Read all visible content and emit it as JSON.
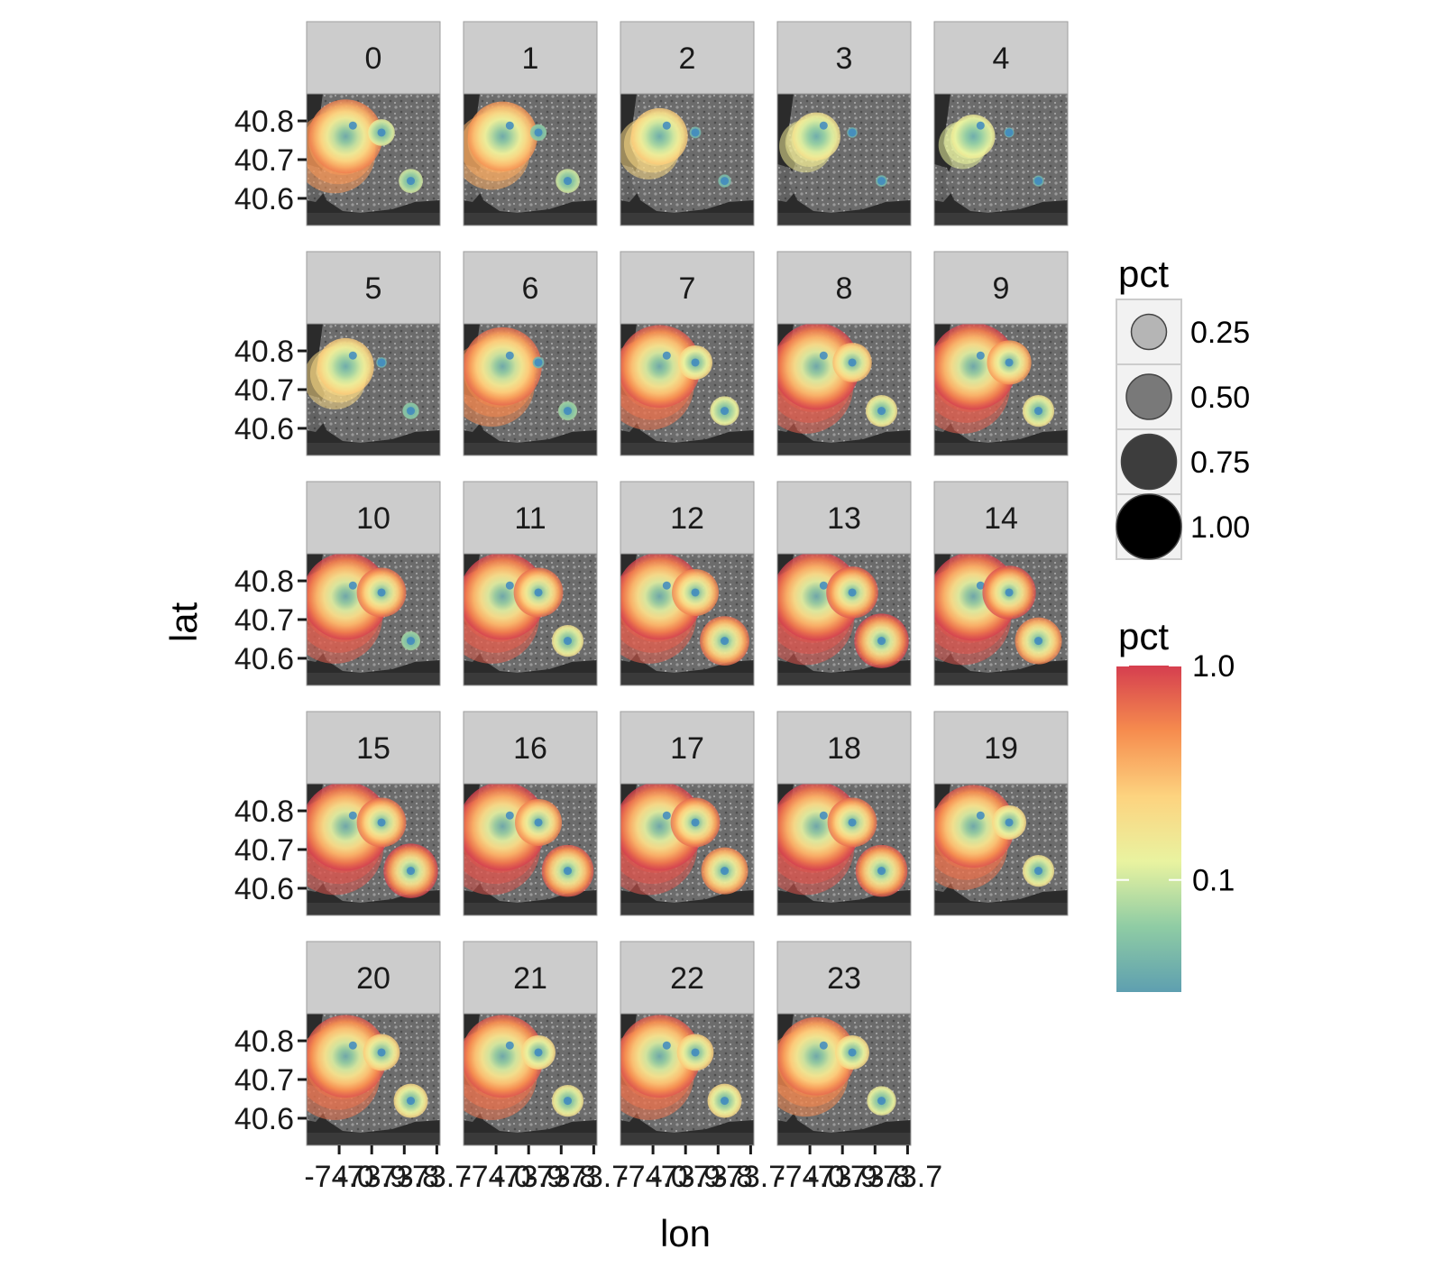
{
  "chart_data": {
    "type": "scatter",
    "xlabel": "lon",
    "ylabel": "lat",
    "x_tick_labels": [
      "-74.0",
      "-73.9",
      "-73.8",
      "-73.7"
    ],
    "x_tick_values": [
      -74.0,
      -73.9,
      -73.8,
      -73.7
    ],
    "y_tick_labels": [
      "40.6",
      "40.7",
      "40.8"
    ],
    "y_tick_values": [
      40.6,
      40.7,
      40.8
    ],
    "xlim": [
      -74.1,
      -73.69
    ],
    "ylim": [
      40.53,
      40.87
    ],
    "facet_by": "hour",
    "facet_cols": 5,
    "facets": [
      {
        "label": "0",
        "intensity": [
          0.75,
          0.35,
          0.3
        ]
      },
      {
        "label": "1",
        "intensity": [
          0.7,
          0.15,
          0.3
        ]
      },
      {
        "label": "2",
        "intensity": [
          0.55,
          0.05,
          0.08
        ]
      },
      {
        "label": "3",
        "intensity": [
          0.45,
          0.03,
          0.05
        ]
      },
      {
        "label": "4",
        "intensity": [
          0.4,
          0.02,
          0.04
        ]
      },
      {
        "label": "5",
        "intensity": [
          0.55,
          0.03,
          0.15
        ]
      },
      {
        "label": "6",
        "intensity": [
          0.8,
          0.05,
          0.2
        ]
      },
      {
        "label": "7",
        "intensity": [
          0.85,
          0.5,
          0.4
        ]
      },
      {
        "label": "8",
        "intensity": [
          0.9,
          0.6,
          0.45
        ]
      },
      {
        "label": "9",
        "intensity": [
          0.9,
          0.7,
          0.45
        ]
      },
      {
        "label": "10",
        "intensity": [
          0.9,
          0.8,
          0.2
        ]
      },
      {
        "label": "11",
        "intensity": [
          0.9,
          0.8,
          0.45
        ]
      },
      {
        "label": "12",
        "intensity": [
          0.9,
          0.75,
          0.8
        ]
      },
      {
        "label": "13",
        "intensity": [
          0.92,
          0.85,
          0.9
        ]
      },
      {
        "label": "14",
        "intensity": [
          0.92,
          0.88,
          0.75
        ]
      },
      {
        "label": "15",
        "intensity": [
          0.92,
          0.8,
          0.9
        ]
      },
      {
        "label": "16",
        "intensity": [
          0.92,
          0.75,
          0.85
        ]
      },
      {
        "label": "17",
        "intensity": [
          0.92,
          0.8,
          0.75
        ]
      },
      {
        "label": "18",
        "intensity": [
          0.92,
          0.8,
          0.85
        ]
      },
      {
        "label": "19",
        "intensity": [
          0.85,
          0.5,
          0.45
        ]
      },
      {
        "label": "20",
        "intensity": [
          0.85,
          0.55,
          0.5
        ]
      },
      {
        "label": "21",
        "intensity": [
          0.85,
          0.5,
          0.45
        ]
      },
      {
        "label": "22",
        "intensity": [
          0.85,
          0.55,
          0.5
        ]
      },
      {
        "label": "23",
        "intensity": [
          0.8,
          0.5,
          0.4
        ]
      }
    ],
    "hotspots": [
      {
        "lon": -73.98,
        "lat": 40.76
      },
      {
        "lon": -73.87,
        "lat": 40.77
      },
      {
        "lon": -73.78,
        "lat": 40.645
      }
    ],
    "legend_size": {
      "title": "pct",
      "labels": [
        "0.25",
        "0.50",
        "0.75",
        "1.00"
      ],
      "values": [
        0.25,
        0.5,
        0.75,
        1.0
      ]
    },
    "legend_color": {
      "title": "pct",
      "labels": [
        "1.0",
        "0.1"
      ],
      "values": [
        1.0,
        0.1
      ],
      "scale": "log10",
      "range": [
        0.03,
        1.0
      ],
      "colors": [
        "#5e9fb0",
        "#8fcca4",
        "#e9f3a0",
        "#fdd37f",
        "#f68c4e",
        "#d53e4f"
      ]
    },
    "background_color": "#2b2b2b",
    "strip_fill": "#cccccc",
    "grid": false,
    "legend_position": "right"
  }
}
